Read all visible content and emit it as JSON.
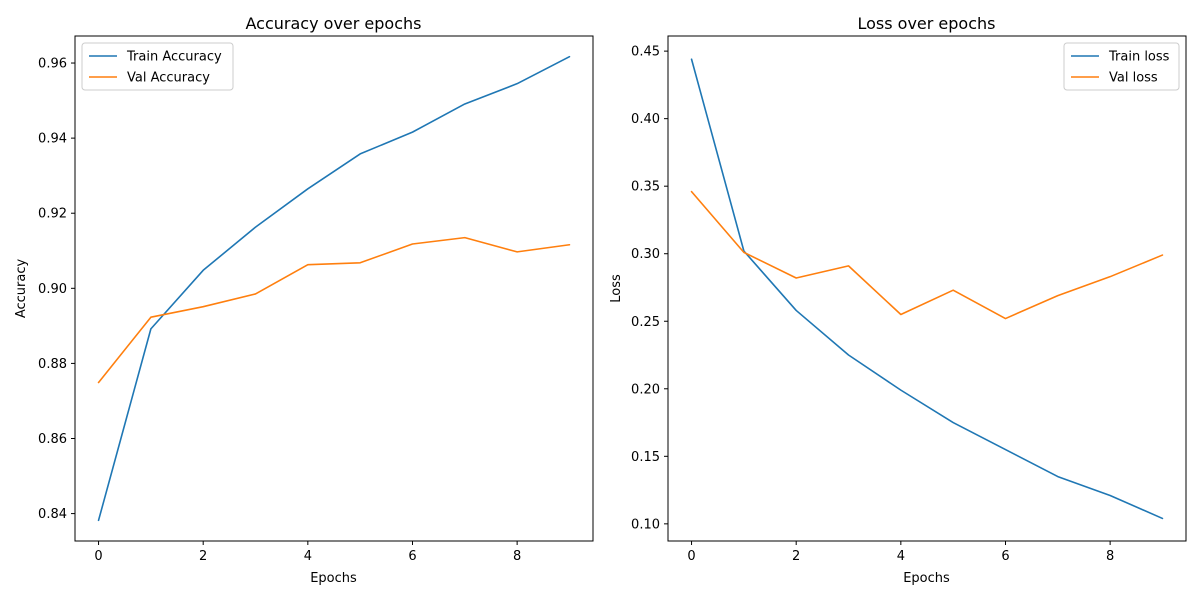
{
  "chart_data": [
    {
      "type": "line",
      "title": "Accuracy over epochs",
      "xlabel": "Epochs",
      "ylabel": "Accuracy",
      "xlim": [
        -0.45,
        9.45
      ],
      "ylim": [
        0.8327,
        0.9672
      ],
      "xticks": [
        0,
        2,
        4,
        6,
        8
      ],
      "yticks": [
        0.84,
        0.86,
        0.88,
        0.9,
        0.92,
        0.94,
        0.96
      ],
      "xtick_labels": [
        "0",
        "2",
        "4",
        "6",
        "8"
      ],
      "ytick_labels": [
        "0.84",
        "0.86",
        "0.88",
        "0.90",
        "0.92",
        "0.94",
        "0.96"
      ],
      "legend_position": "upper-left",
      "x": [
        0,
        1,
        2,
        3,
        4,
        5,
        6,
        7,
        8,
        9
      ],
      "series": [
        {
          "name": "Train Accuracy",
          "color": "#1f77b4",
          "values": [
            0.8382,
            0.8892,
            0.9048,
            0.9163,
            0.9265,
            0.9358,
            0.9416,
            0.9491,
            0.9545,
            0.9617
          ]
        },
        {
          "name": "Val Accuracy",
          "color": "#ff7f0e",
          "values": [
            0.8749,
            0.8923,
            0.8951,
            0.8985,
            0.9063,
            0.9068,
            0.9118,
            0.9135,
            0.9097,
            0.9116
          ]
        }
      ]
    },
    {
      "type": "line",
      "title": "Loss over epochs",
      "xlabel": "Epochs",
      "ylabel": "Loss",
      "xlim": [
        -0.45,
        9.45
      ],
      "ylim": [
        0.0873,
        0.4612
      ],
      "xticks": [
        0,
        2,
        4,
        6,
        8
      ],
      "yticks": [
        0.1,
        0.15,
        0.2,
        0.25,
        0.3,
        0.35,
        0.4,
        0.45
      ],
      "xtick_labels": [
        "0",
        "2",
        "4",
        "6",
        "8"
      ],
      "ytick_labels": [
        "0.10",
        "0.15",
        "0.20",
        "0.25",
        "0.30",
        "0.35",
        "0.40",
        "0.45"
      ],
      "legend_position": "upper-right",
      "x": [
        0,
        1,
        2,
        3,
        4,
        5,
        6,
        7,
        8,
        9
      ],
      "series": [
        {
          "name": "Train loss",
          "color": "#1f77b4",
          "values": [
            0.444,
            0.302,
            0.258,
            0.225,
            0.199,
            0.175,
            0.155,
            0.135,
            0.121,
            0.104
          ]
        },
        {
          "name": "Val loss",
          "color": "#ff7f0e",
          "values": [
            0.346,
            0.301,
            0.282,
            0.291,
            0.255,
            0.273,
            0.252,
            0.269,
            0.283,
            0.299
          ]
        }
      ]
    }
  ]
}
